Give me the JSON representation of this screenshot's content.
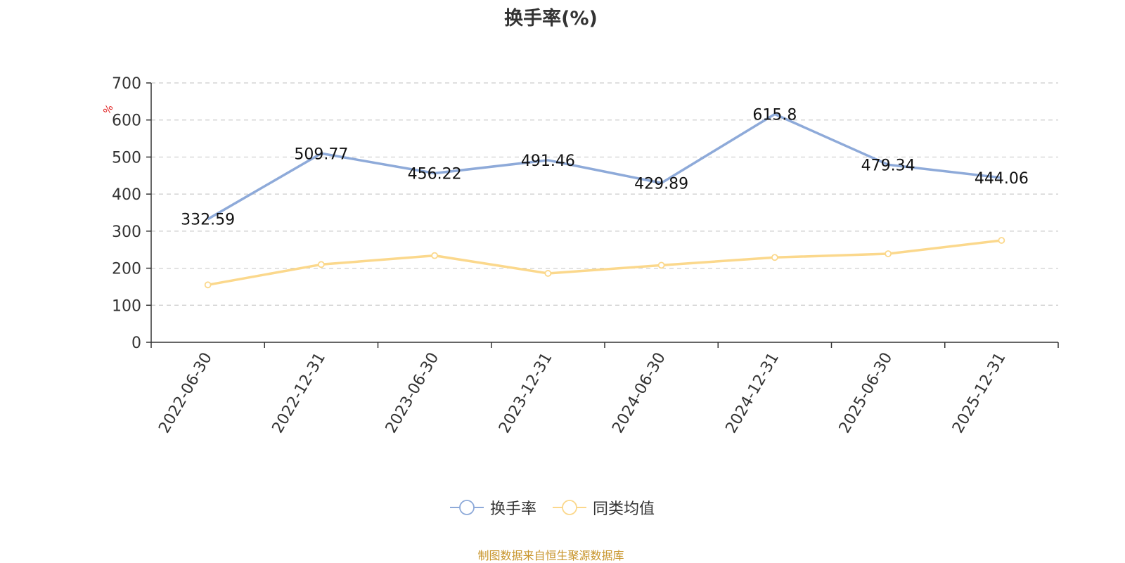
{
  "chart_data": {
    "type": "line",
    "title": "换手率(%)",
    "ylabel": "%",
    "categories": [
      "2022-06-30",
      "2022-12-31",
      "2023-06-30",
      "2023-12-31",
      "2024-06-30",
      "2024-12-31",
      "2025-06-30",
      "2025-12-31"
    ],
    "ylim": [
      0,
      700
    ],
    "yticks": [
      0,
      100,
      200,
      300,
      400,
      500,
      600,
      700
    ],
    "grid": true,
    "legend_position": "bottom",
    "series": [
      {
        "name": "换手率",
        "color": "#8eaad9",
        "values": [
          332.59,
          509.77,
          456.22,
          491.46,
          429.89,
          615.8,
          479.34,
          444.06
        ],
        "labels": [
          "332.59",
          "509.77",
          "456.22",
          "491.46",
          "429.89",
          "615.8",
          "479.34",
          "444.06"
        ]
      },
      {
        "name": "同类均值",
        "color": "#fbd88c",
        "values": [
          155,
          210,
          234,
          186,
          208,
          229,
          239,
          275
        ]
      }
    ]
  },
  "source_note": "制图数据来自恒生聚源数据库"
}
